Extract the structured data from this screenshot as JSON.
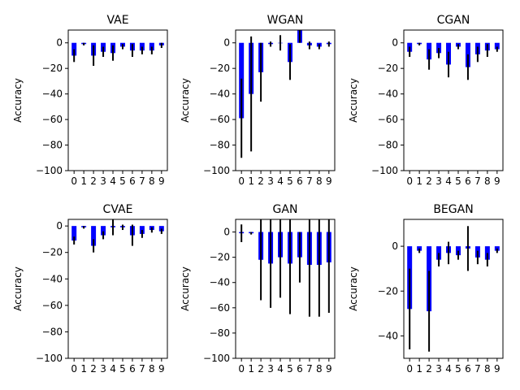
{
  "chart_data": [
    {
      "type": "bar",
      "title": "VAE",
      "ylabel": "Accuracy",
      "categories": [
        "0",
        "1",
        "2",
        "3",
        "4",
        "5",
        "6",
        "7",
        "8",
        "9"
      ],
      "values": [
        -10,
        -1,
        -10,
        -7,
        -8,
        -3,
        -6,
        -6,
        -6,
        -2
      ],
      "errors": [
        5,
        1,
        8,
        4,
        6,
        2,
        5,
        3,
        3,
        2
      ],
      "ylim": [
        -100,
        10
      ],
      "yticks": [
        -100,
        -80,
        -60,
        -40,
        -20,
        0
      ],
      "bar_color": "#0000ff",
      "error_color": "#000000"
    },
    {
      "type": "bar",
      "title": "WGAN",
      "ylabel": "Accuracy",
      "categories": [
        "0",
        "1",
        "2",
        "3",
        "4",
        "5",
        "6",
        "7",
        "8",
        "9"
      ],
      "values": [
        -59,
        -40,
        -23,
        -1,
        0,
        -15,
        13,
        -2,
        -3,
        -1
      ],
      "errors": [
        31,
        45,
        23,
        2,
        6,
        14,
        13,
        3,
        2,
        2
      ],
      "ylim": [
        -100,
        10
      ],
      "yticks": [
        -100,
        -80,
        -60,
        -40,
        -20,
        0
      ],
      "bar_color": "#0000ff",
      "error_color": "#000000"
    },
    {
      "type": "bar",
      "title": "CGAN",
      "ylabel": "Accuracy",
      "categories": [
        "0",
        "1",
        "2",
        "3",
        "4",
        "5",
        "6",
        "7",
        "8",
        "9"
      ],
      "values": [
        -7,
        -1,
        -13,
        -8,
        -17,
        -3,
        -19,
        -9,
        -6,
        -5
      ],
      "errors": [
        4,
        1,
        8,
        4,
        10,
        2,
        10,
        6,
        5,
        2
      ],
      "ylim": [
        -100,
        10
      ],
      "yticks": [
        -100,
        -80,
        -60,
        -40,
        -20,
        0
      ],
      "bar_color": "#0000ff",
      "error_color": "#000000"
    },
    {
      "type": "bar",
      "title": "CVAE",
      "ylabel": "Accuracy",
      "categories": [
        "0",
        "1",
        "2",
        "3",
        "4",
        "5",
        "6",
        "7",
        "8",
        "9"
      ],
      "values": [
        -11,
        -1,
        -15,
        -7,
        -1,
        -1,
        -7,
        -6,
        -3,
        -4
      ],
      "errors": [
        3,
        1,
        5,
        3,
        6,
        2,
        8,
        3,
        2,
        2
      ],
      "ylim": [
        -100,
        5
      ],
      "yticks": [
        -100,
        -80,
        -60,
        -40,
        -20,
        0
      ],
      "bar_color": "#0000ff",
      "error_color": "#000000"
    },
    {
      "type": "bar",
      "title": "GAN",
      "ylabel": "Accuracy",
      "categories": [
        "0",
        "1",
        "2",
        "3",
        "4",
        "5",
        "6",
        "7",
        "8",
        "9"
      ],
      "values": [
        -1,
        -1,
        -22,
        -25,
        -20,
        -25,
        -20,
        -26,
        -26,
        -24
      ],
      "errors": [
        7,
        1,
        32,
        35,
        32,
        40,
        20,
        41,
        41,
        40
      ],
      "ylim": [
        -100,
        10
      ],
      "yticks": [
        -100,
        -80,
        -60,
        -40,
        -20,
        0
      ],
      "bar_color": "#0000ff",
      "error_color": "#000000"
    },
    {
      "type": "bar",
      "title": "BEGAN",
      "ylabel": "Accuracy",
      "categories": [
        "0",
        "1",
        "2",
        "3",
        "4",
        "5",
        "6",
        "7",
        "8",
        "9"
      ],
      "values": [
        -28,
        -2,
        -29,
        -6,
        -3,
        -4,
        -1,
        -5,
        -6,
        -2
      ],
      "errors": [
        18,
        1,
        18,
        3,
        5,
        2,
        10,
        3,
        3,
        1
      ],
      "ylim": [
        -50,
        12
      ],
      "yticks": [
        -40,
        -20,
        0
      ],
      "bar_color": "#0000ff",
      "error_color": "#000000"
    }
  ]
}
